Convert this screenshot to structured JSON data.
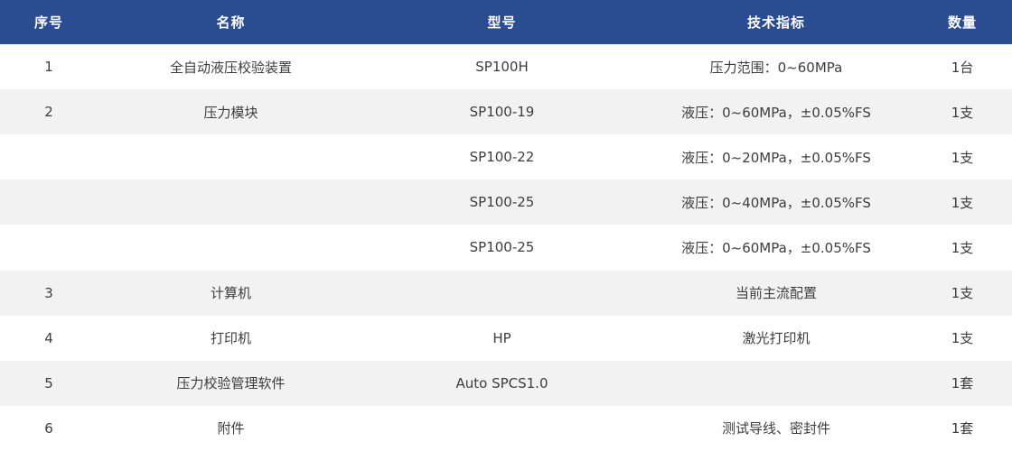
{
  "theme": {
    "header-bg": "#2b4c90",
    "stripe-bg": "#f2f2f2",
    "header-text": "#ffffff",
    "body-text": "#3d3d3d"
  },
  "table": {
    "columns": {
      "no": "序号",
      "name": "名称",
      "model": "型号",
      "spec": "技术指标",
      "qty": "数量"
    },
    "rows": [
      {
        "no": "1",
        "name": "全自动液压校验装置",
        "model": "SP100H",
        "spec": "压力范围：0~60MPa",
        "qty": "1台"
      },
      {
        "no": "2",
        "name": "压力模块",
        "model": "SP100-19",
        "spec": "液压：0~60MPa，±0.05%FS",
        "qty": "1支"
      },
      {
        "no": "",
        "name": "",
        "model": "SP100-22",
        "spec": "液压：0~20MPa，±0.05%FS",
        "qty": "1支"
      },
      {
        "no": "",
        "name": "",
        "model": "SP100-25",
        "spec": "液压：0~40MPa，±0.05%FS",
        "qty": "1支"
      },
      {
        "no": "",
        "name": "",
        "model": "SP100-25",
        "spec": "液压：0~60MPa，±0.05%FS",
        "qty": "1支"
      },
      {
        "no": "3",
        "name": "计算机",
        "model": "",
        "spec": "当前主流配置",
        "qty": "1支"
      },
      {
        "no": "4",
        "name": "打印机",
        "model": "HP",
        "spec": "激光打印机",
        "qty": "1支"
      },
      {
        "no": "5",
        "name": "压力校验管理软件",
        "model": "Auto SPCS1.0",
        "spec": "",
        "qty": "1套"
      },
      {
        "no": "6",
        "name": "附件",
        "model": "",
        "spec": "测试导线、密封件",
        "qty": "1套"
      }
    ]
  }
}
